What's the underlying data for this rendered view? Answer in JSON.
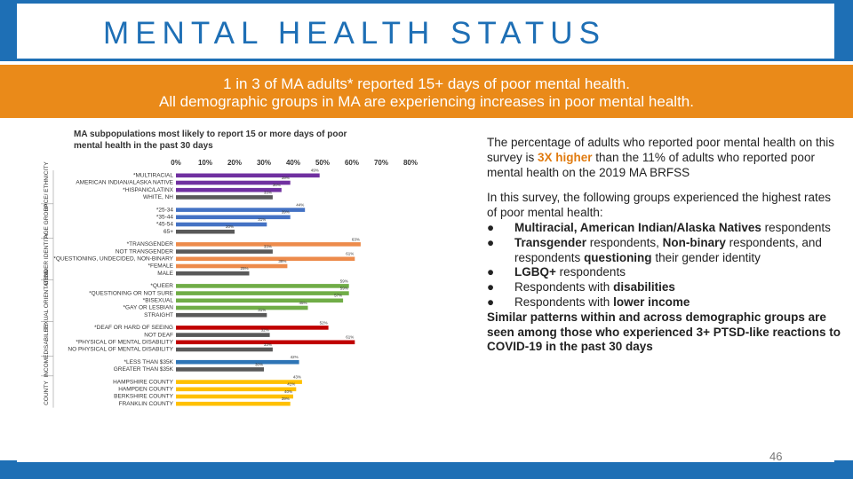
{
  "header": {
    "title": "MENTAL HEALTH STATUS"
  },
  "banner": {
    "line1": "1 in 3 of MA adults* reported 15+ days of poor mental health.",
    "line2": "All demographic groups in MA are experiencing increases in poor mental health."
  },
  "colors": {
    "header_blue": "#1e6fb5",
    "banner_orange": "#ea8a19",
    "highlight_orange": "#e07b10"
  },
  "chart_data": {
    "type": "bar",
    "orientation": "horizontal",
    "title_lines": [
      "MA subpopulations most likely to report 15 or more days of poor",
      "mental health in the past 30 days"
    ],
    "x_ticks": [
      "0%",
      "10%",
      "20%",
      "30%",
      "40%",
      "50%",
      "60%",
      "70%",
      "80%"
    ],
    "xlim": [
      0,
      80
    ],
    "groups": [
      {
        "name": "RACE/ ETHNICITY",
        "color": "#7030a0",
        "rows": [
          {
            "label": "*MULTIRACIAL",
            "value": 49
          },
          {
            "label": "AMERICAN INDIAN/ALASKA NATIVE",
            "value": 39
          },
          {
            "label": "*HISPANIC/LATINX",
            "value": 36
          },
          {
            "label": "WHITE, NH",
            "value": 33,
            "ref": true
          }
        ]
      },
      {
        "name": "AGE GROUP",
        "color": "#4472c4",
        "rows": [
          {
            "label": "*25-34",
            "value": 44
          },
          {
            "label": "*35-44",
            "value": 39
          },
          {
            "label": "*45-54",
            "value": 31
          },
          {
            "label": "65+",
            "value": 20,
            "ref": true
          }
        ]
      },
      {
        "name": "GENDER IDENTITY",
        "color": "#ed8b4b",
        "rows": [
          {
            "label": "*TRANSGENDER",
            "value": 63
          },
          {
            "label": "NOT TRANSGENDER",
            "value": 33,
            "ref": true
          },
          {
            "label": "*QUESTIONING, UNDECIDED, NON-BINARY",
            "value": 61
          },
          {
            "label": "*FEMALE",
            "value": 38
          },
          {
            "label": "MALE",
            "value": 25,
            "ref": true
          }
        ]
      },
      {
        "name": "SEXUAL ORIENTATION",
        "color": "#70ad47",
        "rows": [
          {
            "label": "*QUEER",
            "value": 59
          },
          {
            "label": "*QUESTIONING OR NOT SURE",
            "value": 59
          },
          {
            "label": "*BISEXUAL",
            "value": 57
          },
          {
            "label": "*GAY OR LESBIAN",
            "value": 45
          },
          {
            "label": "STRAIGHT",
            "value": 31,
            "ref": true
          }
        ]
      },
      {
        "name": "DISABILITY",
        "color": "#c00000",
        "rows": [
          {
            "label": "*DEAF OR HARD OF SEEING",
            "value": 52
          },
          {
            "label": "NOT DEAF",
            "value": 32,
            "ref": true
          },
          {
            "label": "*PHYSICAL OF MENTAL DISABILITY",
            "value": 61
          },
          {
            "label": "NO PHYSICAL OF MENTAL DISABILITY",
            "value": 33,
            "ref": true
          }
        ]
      },
      {
        "name": "INCOME",
        "color": "#2e75b6",
        "rows": [
          {
            "label": "*LESS THAN $35K",
            "value": 42
          },
          {
            "label": "GREATER THAN $35K",
            "value": 30,
            "ref": true
          }
        ]
      },
      {
        "name": "COUNTY",
        "color": "#ffc000",
        "rows": [
          {
            "label": "HAMPSHIRE COUNTY",
            "value": 43
          },
          {
            "label": "HAMPDEN COUNTY",
            "value": 41
          },
          {
            "label": "BERKSHIRE COUNTY",
            "value": 40
          },
          {
            "label": "FRANKLIN COUNTY",
            "value": 39
          }
        ]
      }
    ],
    "reference_color": "#595959"
  },
  "text": {
    "p1_before": "The percentage of adults who reported poor mental health on this survey is ",
    "p1_highlight": "3X higher",
    "p1_after": " than the 11% of adults who reported poor mental health on the 2019 MA BRFSS",
    "p2_intro": "In this survey, the following groups experienced the highest rates of poor mental health:",
    "bullet": "●",
    "b1_bold": "Multiracial, American Indian/Alaska Natives",
    "b1_rest": " respondents",
    "b2_bold1": "Transgender",
    "b2_mid1": " respondents, ",
    "b2_bold2": "Non-binary",
    "b2_mid2": " respondents, and respondents ",
    "b2_bold3": "questioning",
    "b2_rest": " their gender identity",
    "b3_bold": "LGBQ+",
    "b3_rest": " respondents",
    "b4_plain": "Respondents with ",
    "b4_bold": "disabilities",
    "b5_plain": "Respondents with ",
    "b5_bold": "lower income",
    "p3": "Similar patterns within and across demographic groups are seen among those who experienced 3+ PTSD-like reactions to COVID-19 in the past 30 days"
  },
  "footer": {
    "slide_number": "46"
  }
}
